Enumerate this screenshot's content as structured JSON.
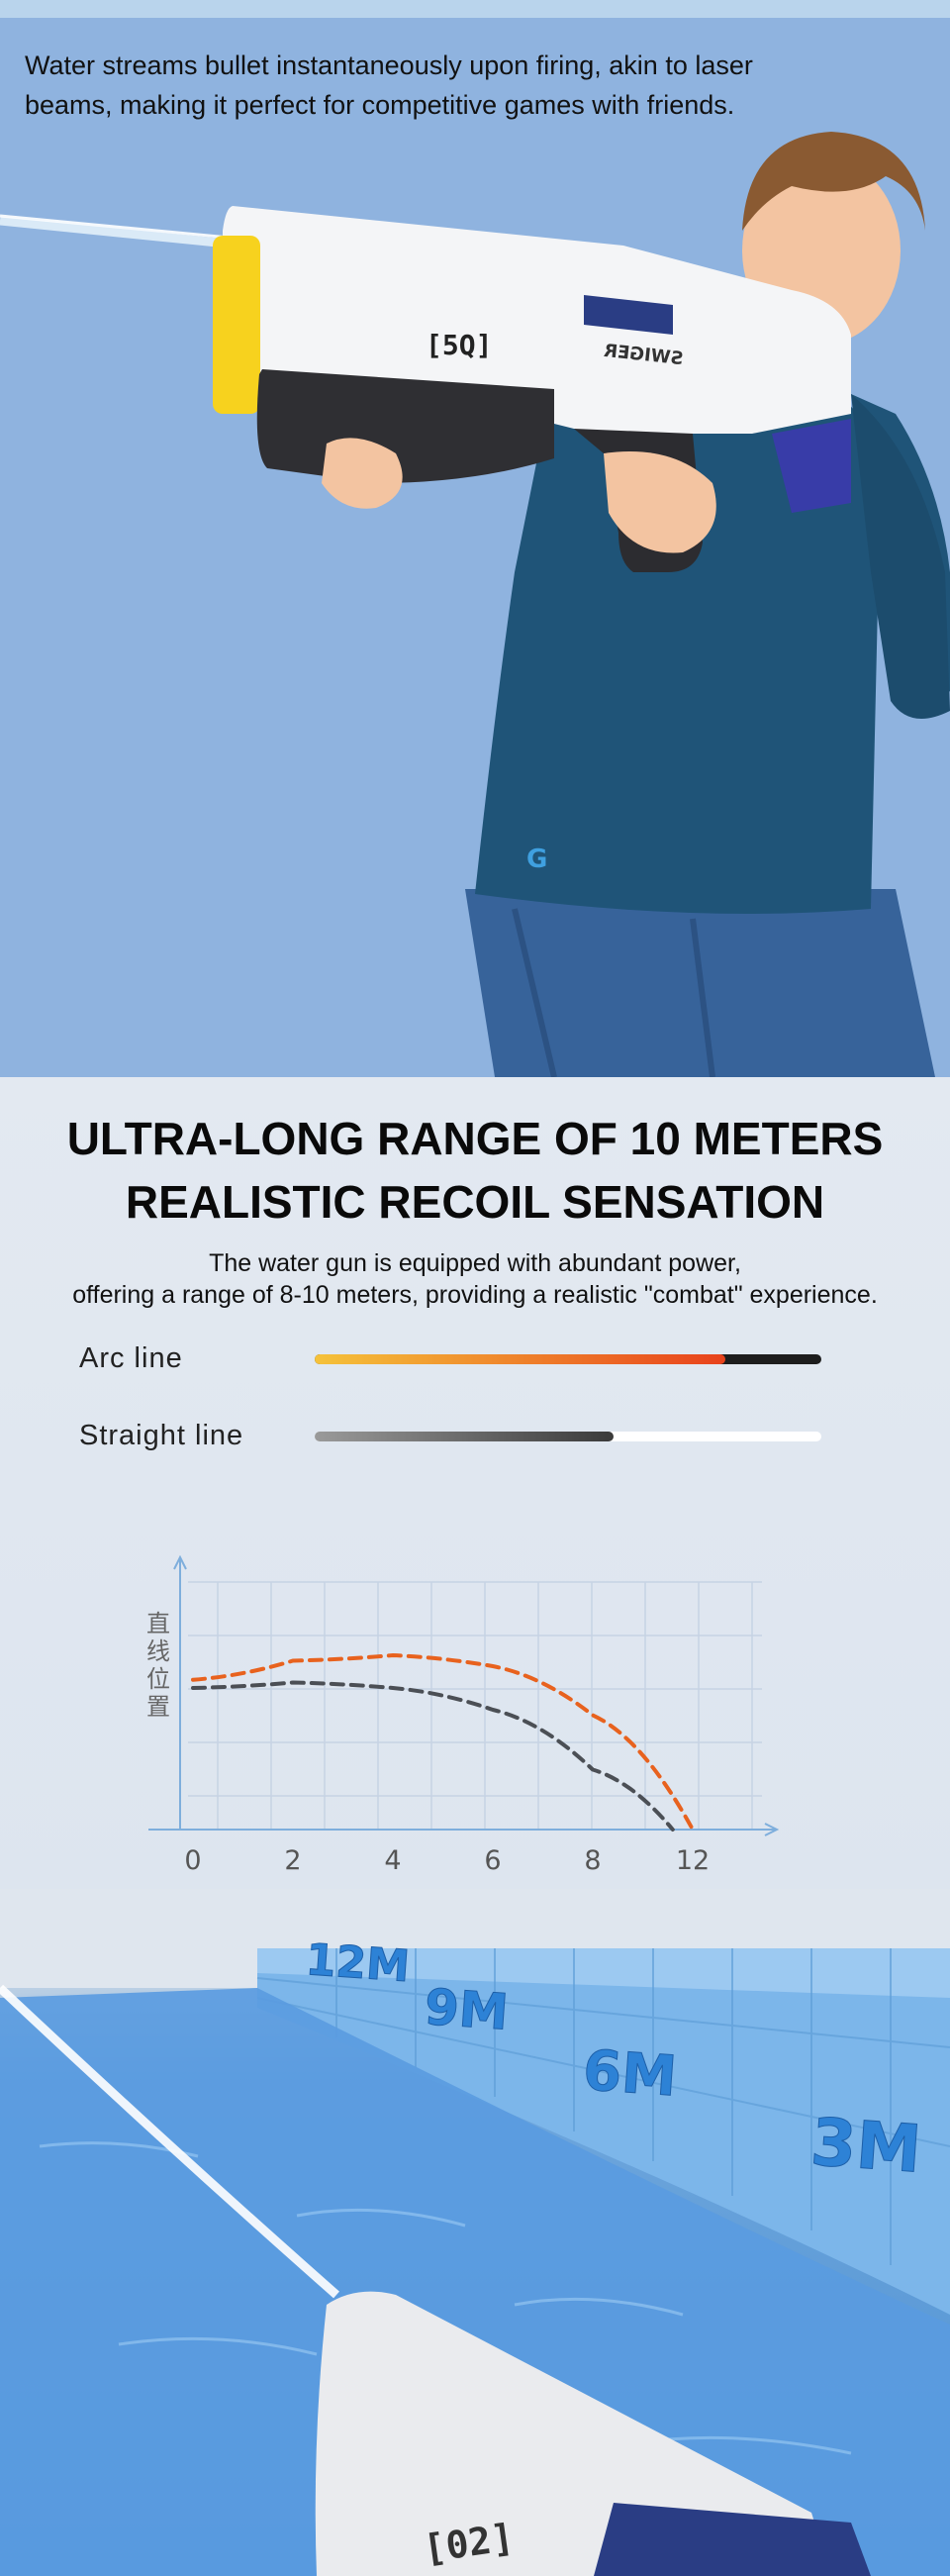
{
  "hero": {
    "caption_line1": "Water streams bullet instantaneously upon firing, akin to laser",
    "caption_line2": "beams,  making it perfect for competitive games with friends.",
    "gun_badge": "[5Q]",
    "gun_brand": "SWIGER",
    "shirt_logo": "G"
  },
  "range": {
    "headline_line1": "ULTRA-LONG RANGE OF 10 METERS",
    "headline_line2": "REALISTIC RECOIL SENSATION",
    "sub_line1": "The water gun is equipped with abundant power,",
    "sub_line2": "offering a range of 8-10 meters, providing a realistic \"combat\" experience.",
    "legend": [
      {
        "label": "Arc line",
        "fill": 0.81,
        "colors": [
          "#f5c23a",
          "#e8421c"
        ],
        "track": "#1d1d1d"
      },
      {
        "label": "Straight  line",
        "fill": 0.59,
        "colors": [
          "#9a9a9a",
          "#3a3a3a"
        ],
        "track": "#ffffff"
      }
    ]
  },
  "chart_data": {
    "type": "line",
    "ylabel": "直线位置",
    "xlabel": "",
    "categories": [
      "0",
      "2",
      "4",
      "6",
      "8",
      "12"
    ],
    "series": [
      {
        "style": "arc",
        "color": "#e8621e",
        "points": [
          [
            0,
            0.55
          ],
          [
            1,
            0.62
          ],
          [
            2,
            0.64
          ],
          [
            3,
            0.6
          ],
          [
            4,
            0.42
          ],
          [
            5,
            0
          ]
        ]
      },
      {
        "style": "straight",
        "color": "#4b4f55",
        "points": [
          [
            0,
            0.52
          ],
          [
            1,
            0.54
          ],
          [
            2,
            0.52
          ],
          [
            3,
            0.44
          ],
          [
            4,
            0.22
          ],
          [
            4.8,
            0
          ]
        ]
      }
    ],
    "grid": true
  },
  "pool": {
    "markers": [
      "12M",
      "9M",
      "6M",
      "3M"
    ],
    "gun_badge": "[02]"
  }
}
